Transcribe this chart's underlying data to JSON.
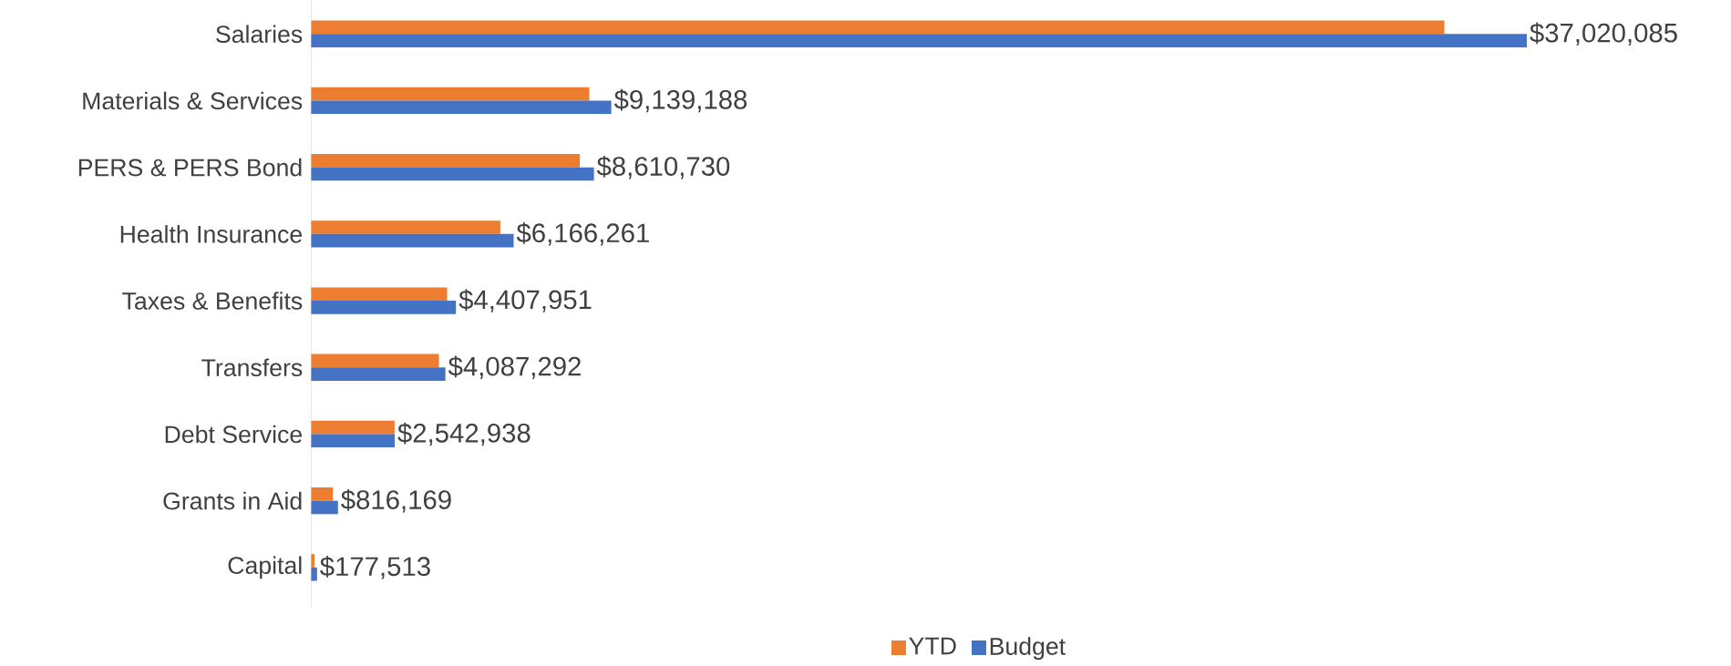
{
  "chart_data": {
    "type": "bar",
    "orientation": "horizontal",
    "legend": "bottom",
    "categories": [
      "Salaries",
      "Materials & Services",
      "PERS & PERS Bond",
      "Health Insurance",
      "Taxes & Benefits",
      "Transfers",
      "Debt Service",
      "Grants in Aid",
      "Capital"
    ],
    "series": [
      {
        "name": "YTD",
        "color": "#ed7d31",
        "values": [
          34510000,
          8470000,
          8180000,
          5760000,
          4140000,
          3890000,
          2540000,
          660000,
          100000
        ]
      },
      {
        "name": "Budget",
        "color": "#4472c4",
        "values": [
          37020085,
          9139188,
          8610730,
          6166261,
          4407951,
          4087292,
          2542938,
          816169,
          177513
        ],
        "value_labels": [
          "$37,020,085",
          "$9,139,188",
          "$8,610,730",
          "$6,166,261",
          "$4,407,951",
          "$4,087,292",
          "$2,542,938",
          "$816,169",
          "$177,513"
        ]
      }
    ]
  }
}
